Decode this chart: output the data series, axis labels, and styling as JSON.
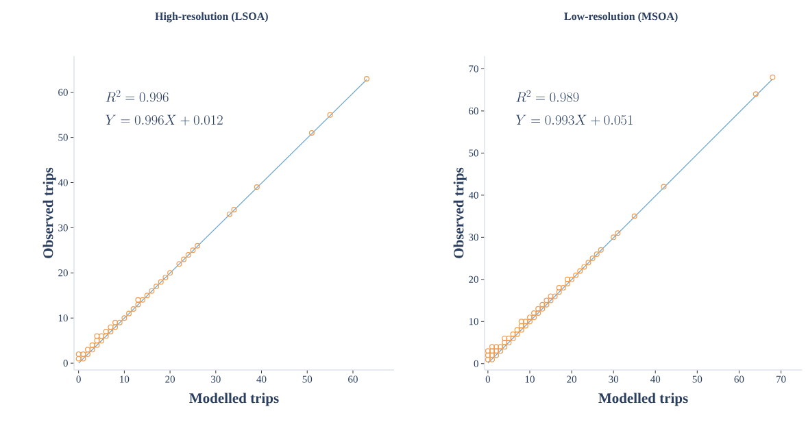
{
  "chart_data": [
    {
      "type": "scatter",
      "title": "High-resolution (LSOA)",
      "xlabel": "Modelled trips",
      "ylabel": "Observed trips",
      "annotations": [
        "R^2 = 0.996",
        "Y = 0.996X + 0.012"
      ],
      "xlim": [
        -1,
        69
      ],
      "ylim": [
        -1.5,
        68
      ],
      "xticks": [
        0,
        10,
        20,
        30,
        40,
        50,
        60
      ],
      "yticks": [
        0,
        10,
        20,
        30,
        40,
        50,
        60
      ],
      "series": [
        {
          "marker": "circle",
          "color": "#f39a4c",
          "x": [
            0,
            0,
            1,
            1,
            2,
            2,
            3,
            3,
            4,
            4,
            4,
            5,
            5,
            6,
            6,
            7,
            7,
            8,
            8,
            9,
            10,
            11,
            12,
            13,
            13,
            14,
            15,
            16,
            17,
            18,
            19,
            20,
            22,
            23,
            24,
            25,
            26,
            33,
            34,
            39,
            51,
            55,
            63
          ],
          "values": [
            1,
            2,
            1,
            2,
            2,
            3,
            3,
            4,
            4,
            5,
            6,
            5,
            6,
            6,
            7,
            7,
            8,
            8,
            9,
            9,
            10,
            11,
            12,
            13,
            14,
            14,
            15,
            16,
            17,
            18,
            19,
            20,
            22,
            23,
            24,
            25,
            26,
            33,
            34,
            39,
            51,
            55,
            63
          ]
        },
        {
          "type": "line",
          "color": "#6fa8d0",
          "x": [
            0,
            63
          ],
          "values": [
            0,
            62.8
          ]
        }
      ]
    },
    {
      "type": "scatter",
      "title": "Low-resolution (MSOA)",
      "xlabel": "Modelled trips",
      "ylabel": "Observed trips",
      "annotations": [
        "R^2 = 0.989",
        "Y = 0.993X + 0.051"
      ],
      "xlim": [
        -0.8,
        75
      ],
      "ylim": [
        -1.5,
        73
      ],
      "xticks": [
        0,
        10,
        20,
        30,
        40,
        50,
        60,
        70
      ],
      "yticks": [
        0,
        10,
        20,
        30,
        40,
        50,
        60,
        70
      ],
      "series": [
        {
          "marker": "circle",
          "color": "#f39a4c",
          "x": [
            0,
            0,
            0,
            1,
            1,
            1,
            1,
            2,
            2,
            2,
            3,
            3,
            4,
            4,
            4,
            5,
            5,
            6,
            6,
            7,
            7,
            8,
            8,
            8,
            9,
            9,
            10,
            10,
            11,
            11,
            12,
            12,
            13,
            13,
            14,
            14,
            15,
            15,
            16,
            17,
            17,
            18,
            19,
            19,
            20,
            21,
            22,
            23,
            24,
            25,
            26,
            27,
            30,
            31,
            35,
            42,
            64,
            68
          ],
          "values": [
            1,
            2,
            3,
            1,
            2,
            3,
            4,
            2,
            3,
            4,
            3,
            4,
            4,
            5,
            6,
            5,
            6,
            6,
            7,
            7,
            8,
            8,
            9,
            10,
            9,
            10,
            10,
            11,
            11,
            12,
            12,
            13,
            13,
            14,
            14,
            15,
            15,
            16,
            16,
            17,
            18,
            18,
            19,
            20,
            20,
            21,
            22,
            23,
            24,
            25,
            26,
            27,
            30,
            31,
            35,
            42,
            64,
            68
          ]
        },
        {
          "type": "line",
          "color": "#6fa8d0",
          "x": [
            0,
            68
          ],
          "values": [
            0.1,
            67.6
          ]
        }
      ]
    }
  ]
}
